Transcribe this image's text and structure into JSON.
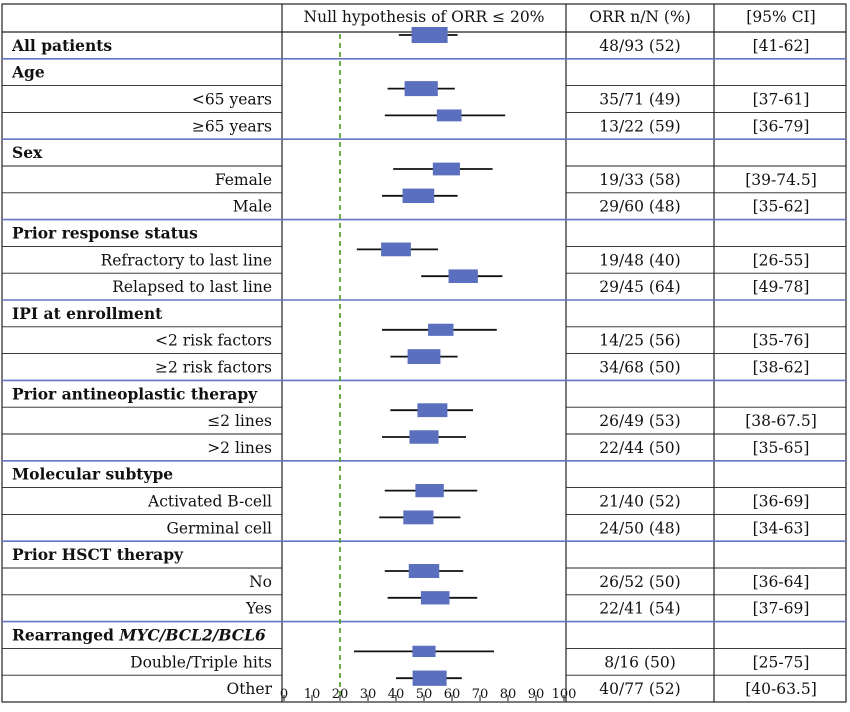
{
  "headers": {
    "plot": "Null hypothesis of ORR ≤ 20%",
    "orr": "ORR n/N (%)",
    "ci": "[95% CI]"
  },
  "colors": {
    "box": "#5b6fbf",
    "separator": "#6475c4",
    "null_line": "#4a9a1f",
    "border": "#222222"
  },
  "chart_data": {
    "type": "forest",
    "title": "Null hypothesis of ORR ≤ 20%",
    "xlim": [
      0,
      100
    ],
    "xticks": [
      0,
      10,
      20,
      30,
      40,
      50,
      60,
      70,
      80,
      90,
      100
    ],
    "null_value": 20,
    "rows": [
      {
        "label": "All patients",
        "header": true,
        "orr": "48/93 (52)",
        "ci": "[41-62]",
        "est": 52,
        "lo": 41,
        "hi": 62,
        "n": 93
      },
      {
        "label": "Age",
        "header": true
      },
      {
        "label": "<65 years",
        "orr": "35/71 (49)",
        "ci": "[37-61]",
        "est": 49,
        "lo": 37,
        "hi": 61,
        "n": 71
      },
      {
        "label": "≥65 years",
        "orr": "13/22 (59)",
        "ci": "[36-79]",
        "est": 59,
        "lo": 36,
        "hi": 79,
        "n": 22
      },
      {
        "label": "Sex",
        "header": true
      },
      {
        "label": "Female",
        "orr": "19/33 (58)",
        "ci": "[39-74.5]",
        "est": 58,
        "lo": 39,
        "hi": 74.5,
        "n": 33
      },
      {
        "label": "Male",
        "orr": "29/60 (48)",
        "ci": "[35-62]",
        "est": 48,
        "lo": 35,
        "hi": 62,
        "n": 60
      },
      {
        "label": "Prior response status",
        "header": true
      },
      {
        "label": "Refractory to last line",
        "orr": "19/48 (40)",
        "ci": "[26-55]",
        "est": 40,
        "lo": 26,
        "hi": 55,
        "n": 48
      },
      {
        "label": "Relapsed to last line",
        "orr": "29/45 (64)",
        "ci": "[49-78]",
        "est": 64,
        "lo": 49,
        "hi": 78,
        "n": 45
      },
      {
        "label": "IPI at enrollment",
        "header": true
      },
      {
        "label": "<2 risk factors",
        "orr": "14/25 (56)",
        "ci": "[35-76]",
        "est": 56,
        "lo": 35,
        "hi": 76,
        "n": 25
      },
      {
        "label": "≥2 risk factors",
        "orr": "34/68 (50)",
        "ci": "[38-62]",
        "est": 50,
        "lo": 38,
        "hi": 62,
        "n": 68
      },
      {
        "label": "Prior antineoplastic therapy",
        "header": true
      },
      {
        "label": "≤2 lines",
        "orr": "26/49 (53)",
        "ci": "[38-67.5]",
        "est": 53,
        "lo": 38,
        "hi": 67.5,
        "n": 49
      },
      {
        "label": ">2 lines",
        "orr": "22/44 (50)",
        "ci": "[35-65]",
        "est": 50,
        "lo": 35,
        "hi": 65,
        "n": 44
      },
      {
        "label": "Molecular subtype",
        "header": true
      },
      {
        "label": "Activated B-cell",
        "orr": "21/40 (52)",
        "ci": "[36-69]",
        "est": 52,
        "lo": 36,
        "hi": 69,
        "n": 40
      },
      {
        "label": "Germinal cell",
        "orr": "24/50 (48)",
        "ci": "[34-63]",
        "est": 48,
        "lo": 34,
        "hi": 63,
        "n": 50
      },
      {
        "label": "Prior HSCT therapy",
        "header": true
      },
      {
        "label": "No",
        "orr": "26/52 (50)",
        "ci": "[36-64]",
        "est": 50,
        "lo": 36,
        "hi": 64,
        "n": 52
      },
      {
        "label": "Yes",
        "orr": "22/41 (54)",
        "ci": "[37-69]",
        "est": 54,
        "lo": 37,
        "hi": 69,
        "n": 41
      },
      {
        "label": "Rearranged MYC/BCL2/BCL6",
        "header": true,
        "label_parts": [
          "Rearranged ",
          "MYC/BCL2/BCL6"
        ]
      },
      {
        "label": "Double/Triple hits",
        "orr": "8/16 (50)",
        "ci": "[25-75]",
        "est": 50,
        "lo": 25,
        "hi": 75,
        "n": 16
      },
      {
        "label": "Other",
        "orr": "40/77 (52)",
        "ci": "[40-63.5]",
        "est": 52,
        "lo": 40,
        "hi": 63.5,
        "n": 77
      }
    ]
  }
}
